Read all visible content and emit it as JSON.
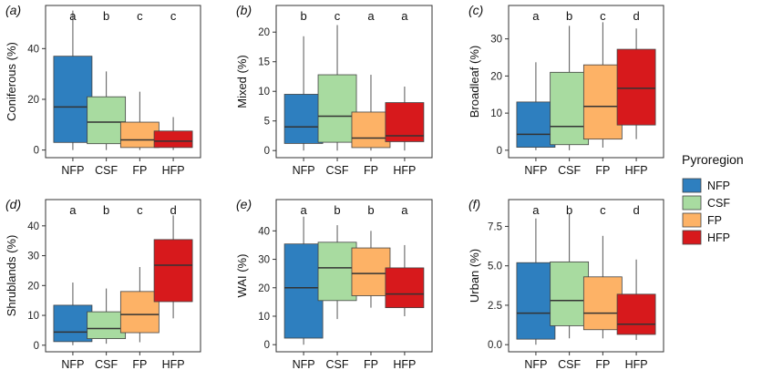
{
  "legend": {
    "title": "Pyroregion",
    "entries": [
      {
        "name": "NFP",
        "color": "#2E7FBF"
      },
      {
        "name": "CSF",
        "color": "#A8DBA0"
      },
      {
        "name": "FP",
        "color": "#FDB266"
      },
      {
        "name": "HFP",
        "color": "#D7191C"
      }
    ]
  },
  "chart_data": [
    {
      "type": "boxplot",
      "panel": "(a)",
      "ylabel": "Coniferous (%)",
      "ylim": [
        -3,
        57
      ],
      "yticks": [
        "0",
        "20",
        "40"
      ],
      "categories": [
        "NFP",
        "CSF",
        "FP",
        "HFP"
      ],
      "letters": [
        "a",
        "b",
        "c",
        "c"
      ],
      "boxes": [
        {
          "min": 0,
          "q1": 3,
          "median": 17,
          "q3": 37,
          "max": 55
        },
        {
          "min": 0,
          "q1": 2.5,
          "median": 11,
          "q3": 21,
          "max": 31
        },
        {
          "min": 0,
          "q1": 1,
          "median": 4,
          "q3": 11,
          "max": 23
        },
        {
          "min": 0,
          "q1": 1,
          "median": 3.5,
          "q3": 7.5,
          "max": 13
        }
      ]
    },
    {
      "type": "boxplot",
      "panel": "(b)",
      "ylabel": "Mixed (%)",
      "ylim": [
        -1.2,
        24.5
      ],
      "yticks": [
        "0",
        "5",
        "10",
        "15",
        "20"
      ],
      "categories": [
        "NFP",
        "CSF",
        "FP",
        "HFP"
      ],
      "letters": [
        "b",
        "c",
        "a",
        "a"
      ],
      "boxes": [
        {
          "min": 0,
          "q1": 1.2,
          "median": 4,
          "q3": 9.5,
          "max": 19.3
        },
        {
          "min": 0,
          "q1": 1.4,
          "median": 5.8,
          "q3": 12.8,
          "max": 21.2
        },
        {
          "min": 0,
          "q1": 0.5,
          "median": 2.1,
          "q3": 6.5,
          "max": 12.8
        },
        {
          "min": 0,
          "q1": 1.5,
          "median": 2.5,
          "q3": 8.1,
          "max": 10.8
        }
      ]
    },
    {
      "type": "boxplot",
      "panel": "(c)",
      "ylabel": "Broadleaf (%)",
      "ylim": [
        -2,
        39
      ],
      "yticks": [
        "0",
        "10",
        "20",
        "30"
      ],
      "categories": [
        "NFP",
        "CSF",
        "FP",
        "HFP"
      ],
      "letters": [
        "a",
        "b",
        "c",
        "d"
      ],
      "boxes": [
        {
          "min": 0,
          "q1": 0.8,
          "median": 4.3,
          "q3": 13,
          "max": 23.7
        },
        {
          "min": 0,
          "q1": 1.5,
          "median": 6.4,
          "q3": 21,
          "max": 33.5
        },
        {
          "min": 0.7,
          "q1": 3,
          "median": 11.8,
          "q3": 23,
          "max": 34.5
        },
        {
          "min": 3,
          "q1": 6.8,
          "median": 16.7,
          "q3": 27.2,
          "max": 32.8
        }
      ]
    },
    {
      "type": "boxplot",
      "panel": "(d)",
      "ylabel": "Shrublands (%)",
      "ylim": [
        -2.2,
        48.8
      ],
      "yticks": [
        "0",
        "10",
        "20",
        "30",
        "40"
      ],
      "categories": [
        "NFP",
        "CSF",
        "FP",
        "HFP"
      ],
      "letters": [
        "a",
        "b",
        "c",
        "d"
      ],
      "boxes": [
        {
          "min": 0,
          "q1": 1.2,
          "median": 4.4,
          "q3": 13.4,
          "max": 21
        },
        {
          "min": 0.5,
          "q1": 2.2,
          "median": 5.6,
          "q3": 11.2,
          "max": 19
        },
        {
          "min": 1,
          "q1": 4.2,
          "median": 10.3,
          "q3": 18,
          "max": 26.2
        },
        {
          "min": 9,
          "q1": 14.6,
          "median": 26.8,
          "q3": 35.4,
          "max": 43.5
        }
      ]
    },
    {
      "type": "boxplot",
      "panel": "(e)",
      "ylabel": "WAI (%)",
      "ylim": [
        -2.5,
        51
      ],
      "yticks": [
        "0",
        "10",
        "20",
        "30",
        "40"
      ],
      "categories": [
        "NFP",
        "CSF",
        "FP",
        "HFP"
      ],
      "letters": [
        "a",
        "b",
        "b",
        "a"
      ],
      "boxes": [
        {
          "min": 0,
          "q1": 2.3,
          "median": 20,
          "q3": 35.4,
          "max": 45
        },
        {
          "min": 9,
          "q1": 15.5,
          "median": 27,
          "q3": 36,
          "max": 42
        },
        {
          "min": 13,
          "q1": 17.2,
          "median": 25,
          "q3": 34,
          "max": 40
        },
        {
          "min": 10,
          "q1": 13,
          "median": 17.8,
          "q3": 27,
          "max": 35
        }
      ]
    },
    {
      "type": "boxplot",
      "panel": "(f)",
      "ylabel": "Urban (%)",
      "ylim": [
        -0.45,
        9.2
      ],
      "yticks": [
        "0.0",
        "2.5",
        "5.0",
        "7.5"
      ],
      "categories": [
        "NFP",
        "CSF",
        "FP",
        "HFP"
      ],
      "letters": [
        "a",
        "b",
        "c",
        "d"
      ],
      "boxes": [
        {
          "min": 0,
          "q1": 0.35,
          "median": 2,
          "q3": 5.2,
          "max": 8
        },
        {
          "min": 0.4,
          "q1": 1.2,
          "median": 2.8,
          "q3": 5.25,
          "max": 8.3
        },
        {
          "min": 0.4,
          "q1": 0.95,
          "median": 2,
          "q3": 4.3,
          "max": 6.9
        },
        {
          "min": 0.3,
          "q1": 0.65,
          "median": 1.3,
          "q3": 3.2,
          "max": 5.4
        }
      ]
    }
  ]
}
